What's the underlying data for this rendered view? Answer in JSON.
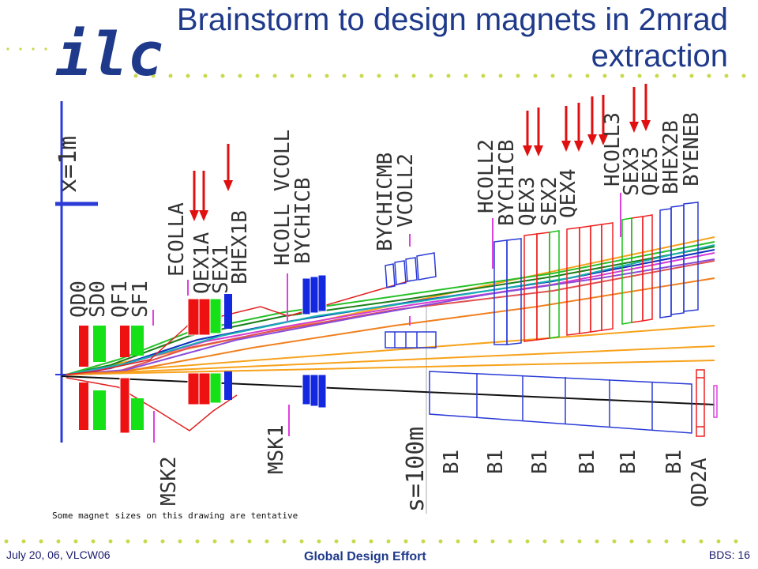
{
  "title_line1": "Brainstorm to design magnets in 2mrad",
  "title_line2": "extraction",
  "logo_text": "ilc",
  "note": "Some magnet sizes on this drawing are tentative",
  "footer": {
    "date": "July 20, 06, VLCW06",
    "center": "Global Design Effort",
    "page": "BDS: 16"
  },
  "scale_x": "x=1m",
  "scale_s": "s=100m",
  "labels": {
    "qd0": "QD0",
    "sd0": "SD0",
    "qf1": "QF1",
    "sf1": "SF1",
    "ecolla": "ECOLLA",
    "qex1a": "QEX1A",
    "sex1": "SEX1",
    "bhex1b": "BHEX1B",
    "hcoll_vcoll": "HCOLL VCOLL",
    "bychicb": "BYCHICB",
    "bychicmb": "BYCHICMB",
    "vcoll2": "VCOLL2",
    "hcoll2": "HCOLL2",
    "bychicb2": "BYCHICB",
    "qex3": "QEX3",
    "sex2": "SEX2",
    "qex4": "QEX4",
    "hcoll3": "HCOLL3",
    "sex3": "SEX3",
    "qex5": "QEX5",
    "bhex2b": "BHEX2B",
    "byeneb": "BYENEB",
    "msk2": "MSK2",
    "msk1": "MSK1",
    "b1_1": "B1",
    "b1_2": "B1",
    "b1_3": "B1",
    "b1_4": "B1",
    "b1_5": "B1",
    "b1_6": "B1",
    "qd2a": "QD2A"
  },
  "colors": {
    "title": "#1f3a8a",
    "dots": "#c9d94a",
    "arrow": "#e01010",
    "axis": "#2a3bd6"
  }
}
